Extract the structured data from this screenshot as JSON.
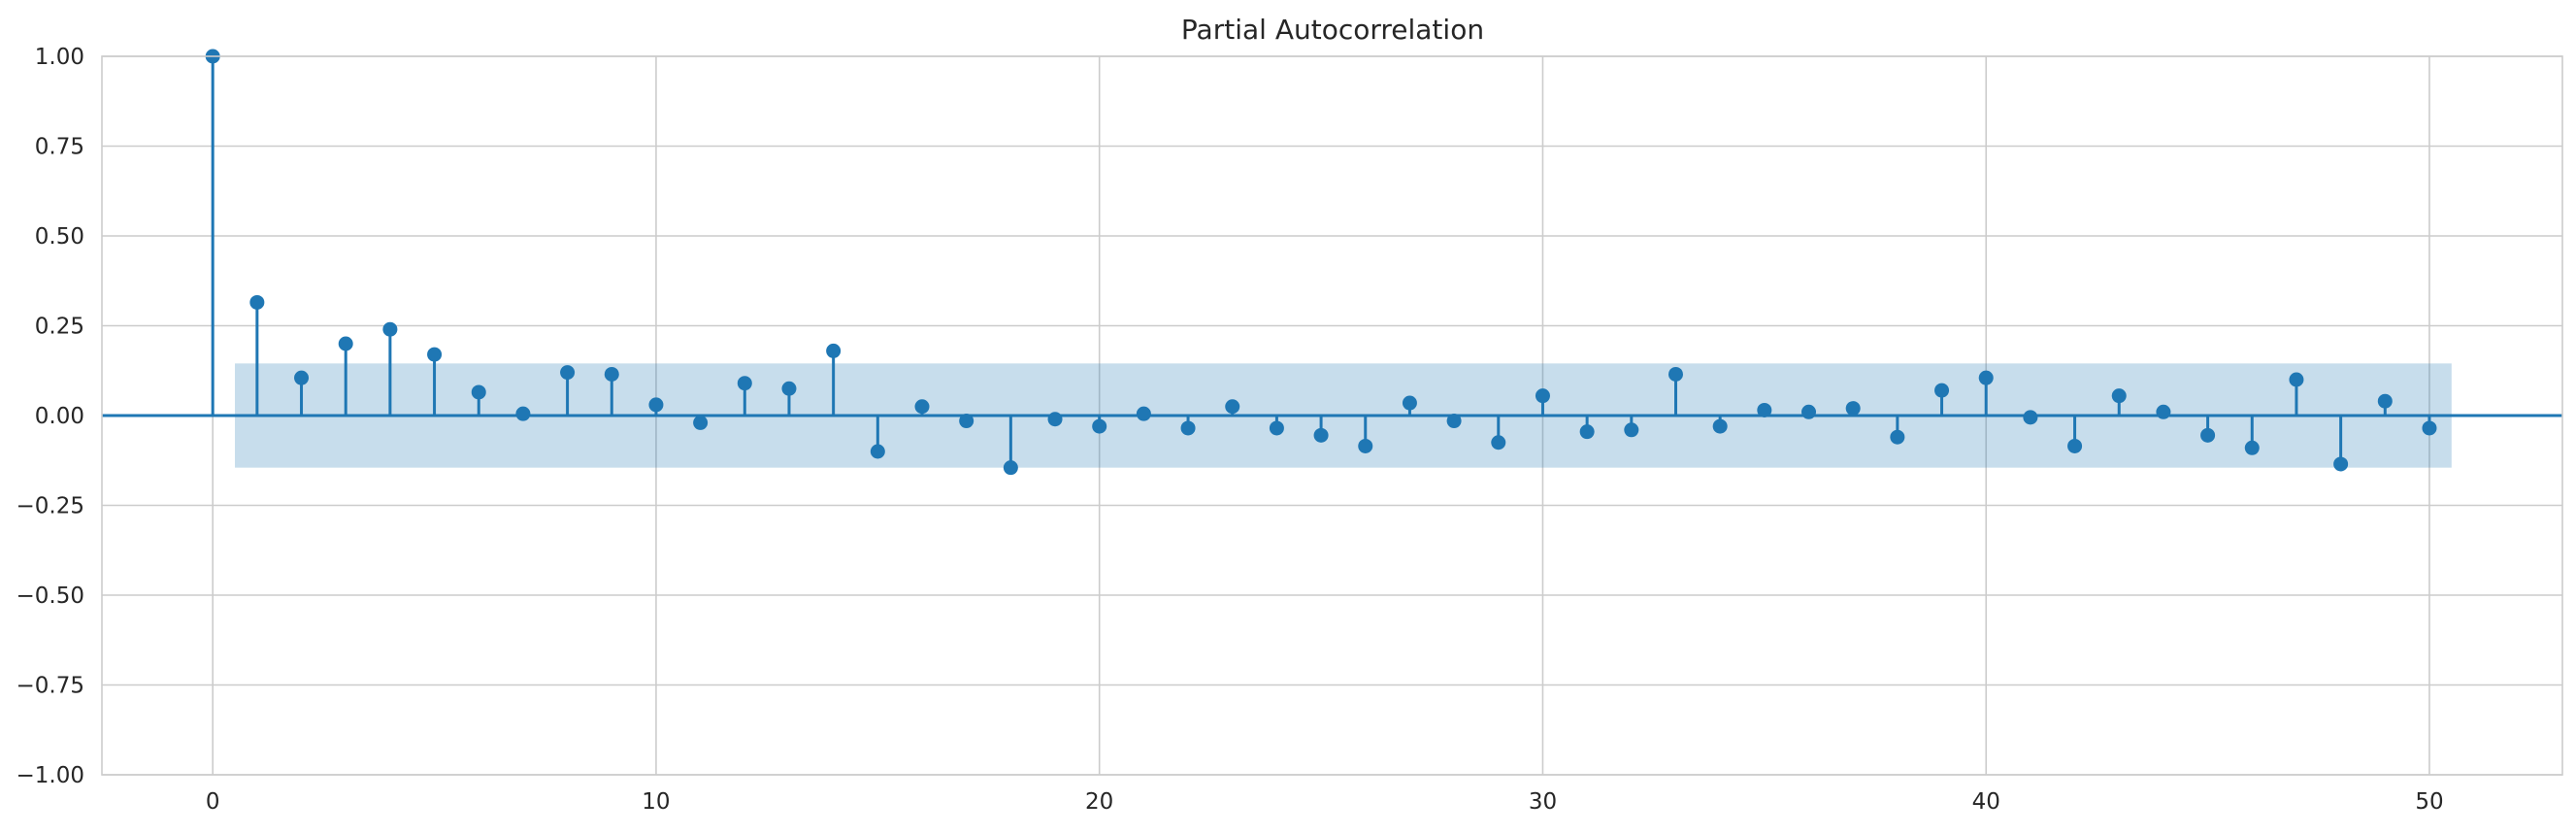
{
  "chart_data": {
    "type": "stem",
    "title": "Partial Autocorrelation",
    "xlabel": "",
    "ylabel": "",
    "xlim": [
      -2.5,
      53
    ],
    "ylim": [
      -1.0,
      1.0
    ],
    "x_ticks": [
      0,
      10,
      20,
      30,
      40,
      50
    ],
    "y_ticks": [
      1.0,
      0.75,
      0.5,
      0.25,
      0.0,
      -0.25,
      -0.5,
      -0.75,
      -1.0
    ],
    "x_tick_labels": [
      "0",
      "10",
      "20",
      "30",
      "40",
      "50"
    ],
    "y_tick_labels": [
      "1.00",
      "0.75",
      "0.50",
      "0.25",
      "0.00",
      "−0.25",
      "−0.50",
      "−0.75",
      "−1.00"
    ],
    "grid": true,
    "lags": [
      0,
      1,
      2,
      3,
      4,
      5,
      6,
      7,
      8,
      9,
      10,
      11,
      12,
      13,
      14,
      15,
      16,
      17,
      18,
      19,
      20,
      21,
      22,
      23,
      24,
      25,
      26,
      27,
      28,
      29,
      30,
      31,
      32,
      33,
      34,
      35,
      36,
      37,
      38,
      39,
      40,
      41,
      42,
      43,
      44,
      45,
      46,
      47,
      48,
      49,
      50
    ],
    "values": [
      1.0,
      0.315,
      0.105,
      0.2,
      0.24,
      0.17,
      0.065,
      0.005,
      0.12,
      0.115,
      0.03,
      -0.02,
      0.09,
      0.075,
      0.18,
      -0.1,
      0.025,
      -0.015,
      -0.145,
      -0.01,
      -0.03,
      0.005,
      -0.035,
      0.025,
      -0.035,
      -0.055,
      -0.085,
      0.035,
      -0.015,
      -0.075,
      0.055,
      -0.045,
      -0.04,
      0.115,
      -0.03,
      0.015,
      0.01,
      0.02,
      -0.06,
      0.07,
      0.105,
      -0.005,
      -0.085,
      0.055,
      0.01,
      -0.055,
      -0.09,
      0.1,
      -0.135,
      0.04,
      -0.035
    ],
    "confidence_band": {
      "x_start": 0.5,
      "x_end": 50.5,
      "upper": 0.145,
      "lower": -0.145
    },
    "colors": {
      "stem": "#1f77b4",
      "band": "#1f77b4",
      "grid": "#cccccc",
      "spine": "#cccccc"
    }
  }
}
